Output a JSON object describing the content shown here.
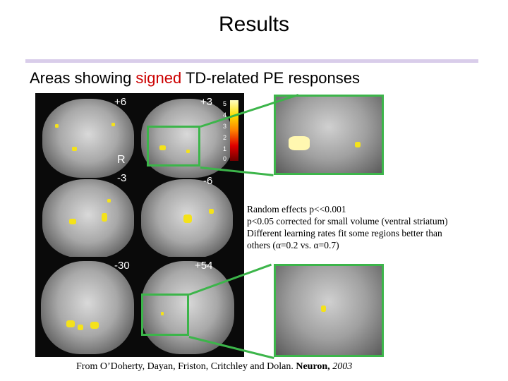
{
  "title": "Results",
  "subtitle": {
    "prefix": "Areas showing ",
    "highlight": "signed",
    "suffix": " TD-related PE responses"
  },
  "slice_labels": {
    "a": "+6",
    "b": "+3",
    "r": "R",
    "c": "-3",
    "d": "-6",
    "e": "-30",
    "f": "+54"
  },
  "colorbar_ticks": [
    "5",
    "4",
    "3",
    "2",
    "1",
    "0"
  ],
  "notes": [
    "Random effects p<<0.001",
    "p<0.05 corrected for small volume (ventral striatum)",
    "Different learning rates fit some regions better than",
    "others (α=0.2 vs. α=0.7)"
  ],
  "citation": {
    "authors": "From O’Doherty, Dayan, Friston, Critchley and Dolan. ",
    "journal": "Neuron,",
    "year": " 2003"
  },
  "colors": {
    "highlight": "#cc0000",
    "box": "#3cb54a",
    "rule": "#d9cdea",
    "activation": "#f4e21a"
  }
}
